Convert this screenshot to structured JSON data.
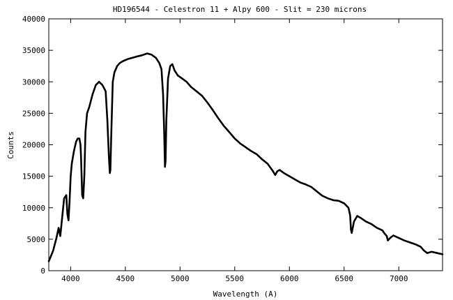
{
  "chart_data": {
    "type": "line",
    "title": "HD196544 - Celestron 11 + Alpy 600 - Slit = 230 microns",
    "xlabel": "Wavelength (A)",
    "ylabel": "Counts",
    "xlim": [
      3800,
      7400
    ],
    "ylim": [
      0,
      40000
    ],
    "x_ticks": [
      4000,
      4500,
      5000,
      5500,
      6000,
      6500,
      7000
    ],
    "y_ticks": [
      0,
      5000,
      10000,
      15000,
      20000,
      25000,
      30000,
      35000,
      40000
    ],
    "grid": false,
    "legend": "none",
    "line_color": "#000000",
    "series": [
      {
        "x": [
          3800,
          3840,
          3870,
          3890,
          3905,
          3920,
          3940,
          3960,
          3970,
          3980,
          3990,
          4000,
          4010,
          4030,
          4050,
          4065,
          4080,
          4090,
          4095,
          4100,
          4105,
          4115,
          4125,
          4135,
          4150,
          4170,
          4200,
          4230,
          4260,
          4290,
          4320,
          4335,
          4350,
          4358,
          4363,
          4370,
          4385,
          4400,
          4425,
          4450,
          4480,
          4520,
          4560,
          4600,
          4650,
          4700,
          4740,
          4780,
          4810,
          4830,
          4845,
          4855,
          4862,
          4868,
          4875,
          4890,
          4910,
          4930,
          4950,
          4980,
          5020,
          5060,
          5100,
          5150,
          5200,
          5250,
          5300,
          5350,
          5400,
          5450,
          5500,
          5550,
          5600,
          5650,
          5700,
          5750,
          5800,
          5850,
          5870,
          5890,
          5910,
          5950,
          6000,
          6050,
          6100,
          6150,
          6200,
          6250,
          6300,
          6350,
          6400,
          6450,
          6500,
          6540,
          6555,
          6563,
          6570,
          6590,
          6620,
          6650,
          6700,
          6750,
          6800,
          6850,
          6870,
          6890,
          6900,
          6920,
          6950,
          7000,
          7050,
          7100,
          7150,
          7200,
          7230,
          7260,
          7300,
          7350,
          7400
        ],
        "y": [
          1500,
          3200,
          5200,
          6800,
          5500,
          8000,
          11500,
          12000,
          9000,
          8000,
          11000,
          15000,
          17000,
          19000,
          20500,
          21000,
          21000,
          20000,
          18000,
          15000,
          12000,
          11500,
          15000,
          22000,
          25000,
          26000,
          28000,
          29500,
          30000,
          29500,
          28500,
          24000,
          18000,
          15500,
          16000,
          21000,
          30000,
          31500,
          32500,
          33000,
          33300,
          33600,
          33800,
          34000,
          34200,
          34500,
          34300,
          33800,
          33000,
          32000,
          28000,
          22000,
          16500,
          17500,
          24000,
          30500,
          32500,
          32800,
          31800,
          31000,
          30500,
          30000,
          29200,
          28500,
          27800,
          26700,
          25500,
          24200,
          23000,
          22000,
          21000,
          20200,
          19600,
          19000,
          18500,
          17700,
          17000,
          15800,
          15200,
          15800,
          16000,
          15500,
          15000,
          14500,
          14000,
          13700,
          13300,
          12600,
          11900,
          11500,
          11200,
          11100,
          10700,
          10000,
          8800,
          6500,
          6000,
          7800,
          8700,
          8400,
          7800,
          7400,
          6800,
          6400,
          5900,
          5500,
          4800,
          5200,
          5600,
          5200,
          4800,
          4500,
          4200,
          3800,
          3200,
          2800,
          3000,
          2800,
          2600
        ]
      }
    ]
  }
}
